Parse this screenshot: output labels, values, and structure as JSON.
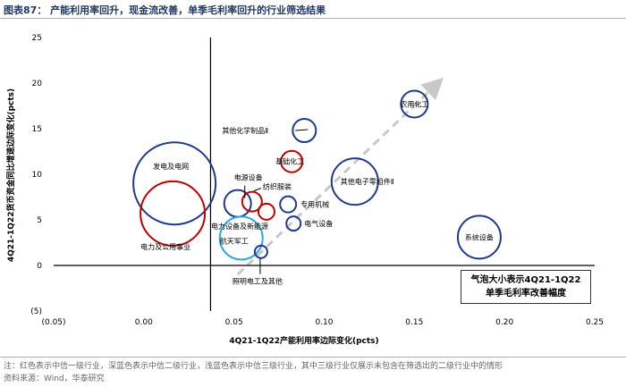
{
  "header": {
    "title": "图表87：  产能利用率回升，现金流改善，单季毛利率回升的行业筛选结果"
  },
  "footer": {
    "note": "注：红色表示中信一级行业，深蓝色表示中信二级行业，浅蓝色表示中信三级行业，其中三级行业仅展示未包含在筛选出的二级行业中的情形",
    "source": "资料来源：Wind，华泰研究"
  },
  "legend_box": {
    "line1": "气泡大小表示4Q21-1Q22",
    "line2": "单季毛利率改善幅度"
  },
  "colors": {
    "level1_red": "#c00000",
    "level2_darkblue": "#1f3a8a",
    "level3_lightblue": "#2aa8e0",
    "trend_arrow": "#c8c8c8"
  },
  "chart_data": {
    "type": "scatter",
    "xlabel": "4Q21-1Q22产能利用率边际变化(pcts)",
    "ylabel": "4Q21-1Q22货币资金同比增速边际变化(pcts)",
    "xlim": [
      -0.05,
      0.25
    ],
    "ylim": [
      -5,
      25
    ],
    "x_ticks": [
      "(0.05)",
      "0.00",
      "0.05",
      "0.10",
      "0.15",
      "0.20",
      "0.25"
    ],
    "y_ticks": [
      "(5)",
      "0",
      "5",
      "10",
      "15",
      "20",
      "25"
    ],
    "trend_arrow": true,
    "bubbles": [
      {
        "label": "发电及电网",
        "x": 0.017,
        "y": 9.0,
        "size": 46,
        "color": "darkblue"
      },
      {
        "label": "电力及公用事业",
        "x": 0.016,
        "y": 5.7,
        "size": 36,
        "color": "red"
      },
      {
        "label": "电源设备",
        "x": 0.052,
        "y": 6.8,
        "size": 15,
        "color": "darkblue"
      },
      {
        "label": "纺织服装",
        "x": 0.06,
        "y": 7.0,
        "size": 11,
        "color": "red"
      },
      {
        "label": "电力设备及新能源",
        "x": 0.068,
        "y": 5.9,
        "size": 9,
        "color": "red"
      },
      {
        "label": "航天军工",
        "x": 0.054,
        "y": 3.0,
        "size": 24,
        "color": "lightblue"
      },
      {
        "label": "照明电工及其他",
        "x": 0.065,
        "y": 1.5,
        "size": 7,
        "color": "darkblue"
      },
      {
        "label": "其他化学制品Ⅱ",
        "x": 0.089,
        "y": 14.8,
        "size": 13,
        "color": "darkblue"
      },
      {
        "label": "基础化工",
        "x": 0.082,
        "y": 11.4,
        "size": 12,
        "color": "red"
      },
      {
        "label": "专用机械",
        "x": 0.08,
        "y": 6.7,
        "size": 9,
        "color": "darkblue"
      },
      {
        "label": "电气设备",
        "x": 0.083,
        "y": 4.6,
        "size": 8,
        "color": "darkblue"
      },
      {
        "label": "其他电子零组件Ⅱ",
        "x": 0.117,
        "y": 9.2,
        "size": 26,
        "color": "darkblue"
      },
      {
        "label": "农用化工",
        "x": 0.15,
        "y": 17.7,
        "size": 15,
        "color": "darkblue"
      },
      {
        "label": "系统设备",
        "x": 0.186,
        "y": 3.1,
        "size": 24,
        "color": "darkblue"
      }
    ]
  }
}
